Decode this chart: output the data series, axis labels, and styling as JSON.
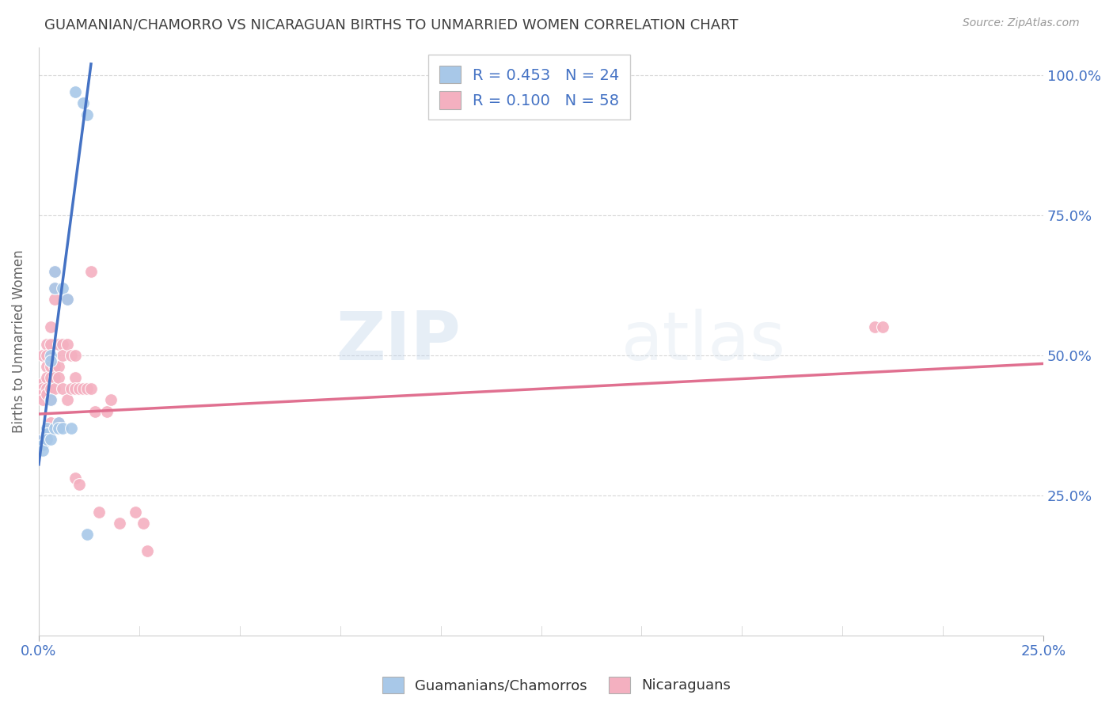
{
  "title": "GUAMANIAN/CHAMORRO VS NICARAGUAN BIRTHS TO UNMARRIED WOMEN CORRELATION CHART",
  "source": "Source: ZipAtlas.com",
  "ylabel": "Births to Unmarried Women",
  "legend_label1": "Guamanians/Chamorros",
  "legend_label2": "Nicaraguans",
  "xlim": [
    0.0,
    0.25
  ],
  "ylim": [
    0.0,
    1.05
  ],
  "guamanian_x": [
    0.001,
    0.001,
    0.001,
    0.002,
    0.002,
    0.002,
    0.002,
    0.003,
    0.003,
    0.003,
    0.003,
    0.004,
    0.004,
    0.004,
    0.005,
    0.005,
    0.006,
    0.006,
    0.007,
    0.008,
    0.009,
    0.011,
    0.012,
    0.012
  ],
  "guamanian_y": [
    0.35,
    0.34,
    0.33,
    0.37,
    0.36,
    0.36,
    0.35,
    0.5,
    0.49,
    0.42,
    0.35,
    0.62,
    0.65,
    0.37,
    0.38,
    0.37,
    0.62,
    0.37,
    0.6,
    0.37,
    0.97,
    0.95,
    0.93,
    0.18
  ],
  "nicaraguan_x": [
    0.001,
    0.001,
    0.001,
    0.001,
    0.001,
    0.001,
    0.002,
    0.002,
    0.002,
    0.002,
    0.002,
    0.002,
    0.002,
    0.003,
    0.003,
    0.003,
    0.003,
    0.003,
    0.003,
    0.003,
    0.004,
    0.004,
    0.004,
    0.004,
    0.004,
    0.004,
    0.005,
    0.005,
    0.005,
    0.005,
    0.006,
    0.006,
    0.006,
    0.007,
    0.007,
    0.007,
    0.008,
    0.008,
    0.009,
    0.009,
    0.009,
    0.009,
    0.01,
    0.01,
    0.011,
    0.012,
    0.013,
    0.013,
    0.014,
    0.015,
    0.017,
    0.018,
    0.02,
    0.024,
    0.026,
    0.027,
    0.208,
    0.21
  ],
  "nicaraguan_y": [
    0.5,
    0.45,
    0.44,
    0.43,
    0.42,
    0.35,
    0.52,
    0.5,
    0.48,
    0.46,
    0.44,
    0.43,
    0.35,
    0.55,
    0.52,
    0.48,
    0.46,
    0.44,
    0.42,
    0.38,
    0.65,
    0.62,
    0.6,
    0.48,
    0.46,
    0.44,
    0.52,
    0.48,
    0.46,
    0.38,
    0.52,
    0.5,
    0.44,
    0.6,
    0.52,
    0.42,
    0.5,
    0.44,
    0.5,
    0.46,
    0.44,
    0.28,
    0.44,
    0.27,
    0.44,
    0.44,
    0.65,
    0.44,
    0.4,
    0.22,
    0.4,
    0.42,
    0.2,
    0.22,
    0.2,
    0.15,
    0.55,
    0.55
  ],
  "guamanian_color": "#a8c8e8",
  "nicaraguan_color": "#f4b0c0",
  "guamanian_line_color": "#4472c4",
  "nicaraguan_line_color": "#e07090",
  "guamanian_line_x": [
    0.0,
    0.013
  ],
  "guamanian_line_y": [
    0.305,
    1.02
  ],
  "nicaraguan_line_x": [
    0.0,
    0.25
  ],
  "nicaraguan_line_y": [
    0.395,
    0.485
  ],
  "R_guamanian": 0.453,
  "N_guamanian": 24,
  "R_nicaraguan": 0.1,
  "N_nicaraguan": 58,
  "watermark_zip": "ZIP",
  "watermark_atlas": "atlas",
  "background_color": "#ffffff",
  "grid_color": "#d8d8d8",
  "title_color": "#404040",
  "axis_label_color": "#4472c4",
  "tick_label_color": "#4472c4"
}
